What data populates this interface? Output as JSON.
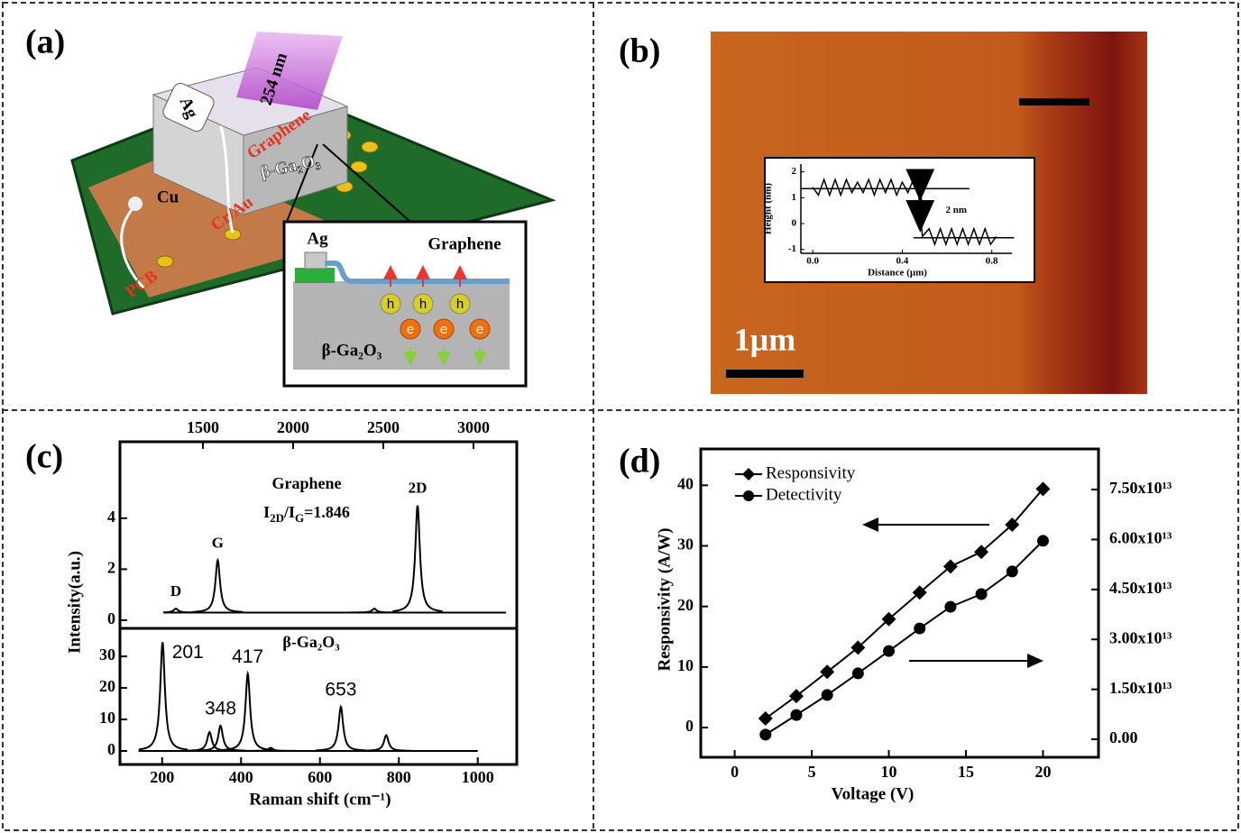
{
  "panels": {
    "a": {
      "label": "(a)",
      "wavelength": "254 nm",
      "electrode": "Ag",
      "graphene": "Graphene",
      "substrate": "β-Ga₂O₃",
      "copper": "Cu",
      "contact": "Cr/Au",
      "board": "PCB",
      "inset": {
        "electrode": "Ag",
        "layer": "Graphene",
        "holes": [
          "h",
          "h",
          "h"
        ],
        "electrons": [
          "e",
          "e",
          "e"
        ],
        "substrate": "β-Ga₂O₃"
      }
    },
    "b": {
      "label": "(b)",
      "scale_bar": "1μm"
    },
    "c": {
      "label": "(c)",
      "ylabel": "Intensity(a.u.)",
      "xlabel": "Raman shift (cm⁻¹)"
    },
    "d": {
      "label": "(d)"
    }
  },
  "chart_data": [
    {
      "type": "spectrum",
      "title": "Graphene",
      "ratio": [
        "I",
        "2D",
        "/I",
        "G",
        "=1.846"
      ],
      "xlim": [
        1040,
        3240
      ],
      "xticks": [
        1500,
        2000,
        2500,
        3000
      ],
      "xrange": [
        1280,
        3180
      ],
      "ylim": [
        -0.32,
        7.0
      ],
      "yticks": [
        0,
        2,
        4
      ],
      "baseline": 0.3,
      "color": "#000000",
      "peaks": [
        {
          "x": 1350,
          "height": 0.45,
          "label": "D"
        },
        {
          "x": 1582,
          "height": 2.35,
          "label": "G"
        },
        {
          "x": 2450,
          "height": 0.45
        },
        {
          "x": 2690,
          "height": 4.5,
          "label": "2D"
        }
      ]
    },
    {
      "type": "spectrum",
      "title": "β-Ga₂O₃",
      "xlim": [
        93,
        1099
      ],
      "xticks": [
        200,
        400,
        600,
        800,
        1000
      ],
      "xrange": [
        140,
        1000
      ],
      "ylim": [
        -4.3,
        38.9
      ],
      "yticks": [
        0,
        10,
        20,
        30
      ],
      "baseline": 0,
      "color": "#000000",
      "peaks": [
        {
          "x": 201,
          "height": 34.5,
          "label": "201"
        },
        {
          "x": 320,
          "height": 6
        },
        {
          "x": 348,
          "height": 8,
          "label": "348"
        },
        {
          "x": 417,
          "height": 24.5,
          "label": "417"
        },
        {
          "x": 475,
          "height": 1
        },
        {
          "x": 653,
          "height": 14,
          "label": "653"
        },
        {
          "x": 768,
          "height": 5
        }
      ]
    },
    {
      "type": "line",
      "xlabel": "Distance (μm)",
      "ylabel": "Height (nm)",
      "annotation": "2 nm",
      "xlim": [
        -0.053,
        0.89
      ],
      "xticks": [
        {
          "value": 0,
          "label": "0.0"
        },
        0.4,
        0.8
      ],
      "ylim": [
        -1.15,
        2.3
      ],
      "yticks": [
        2,
        1,
        0,
        -1
      ],
      "levels": [
        {
          "y": 1.35,
          "x": [
            -0.05,
            0.7
          ]
        },
        {
          "y": -0.55,
          "x": [
            0.45,
            0.9
          ]
        }
      ],
      "x": [
        0.0,
        0.025,
        0.05,
        0.075,
        0.1,
        0.125,
        0.15,
        0.175,
        0.2,
        0.225,
        0.25,
        0.275,
        0.3,
        0.325,
        0.35,
        0.375,
        0.4,
        0.425,
        0.45,
        0.47,
        0.49,
        0.52,
        0.545,
        0.57,
        0.595,
        0.62,
        0.645,
        0.67,
        0.695,
        0.72,
        0.745,
        0.77,
        0.795,
        0.82
      ],
      "values": [
        1.4,
        1.1,
        1.7,
        1.1,
        1.7,
        1.1,
        1.7,
        1.2,
        1.6,
        1.2,
        1.7,
        1.1,
        1.7,
        1.2,
        1.7,
        1.1,
        1.6,
        1.2,
        1.7,
        1.6,
        -0.5,
        -0.2,
        -0.8,
        -0.2,
        -0.8,
        -0.2,
        -0.8,
        -0.2,
        -0.8,
        -0.2,
        -0.8,
        -0.2,
        -0.8,
        -0.5
      ],
      "color": "#000000"
    },
    {
      "type": "line",
      "xlabel": "Voltage (V)",
      "ylabel": "Responsivity (A/W)",
      "xlim": [
        -2.2,
        23.6
      ],
      "xticks": [
        0,
        5,
        10,
        15,
        20
      ],
      "ylim": [
        -4.9,
        46
      ],
      "yticks": [
        0,
        10,
        20,
        30,
        40
      ],
      "y2lim": [
        -5400000000000.0,
        87200000000000.0
      ],
      "y2ticks": [
        {
          "value": 0,
          "label": "0.00"
        },
        {
          "value": 15000000000000.0,
          "label": "1.50x10¹³"
        },
        {
          "value": 30000000000000.0,
          "label": "3.00x10¹³"
        },
        {
          "value": 45000000000000.0,
          "label": "4.50x10¹³"
        },
        {
          "value": 60000000000000.0,
          "label": "6.00x10¹³"
        },
        {
          "value": 75000000000000.0,
          "label": "7.50x10¹³"
        }
      ],
      "x": [
        2,
        4,
        6,
        8,
        10,
        12,
        14,
        16,
        18,
        20
      ],
      "legend": "top-left",
      "series": [
        {
          "name": "Responsivity",
          "color": "#000000",
          "marker": "diamond",
          "values": [
            1.5,
            5.2,
            9.2,
            13.2,
            17.9,
            22.3,
            26.6,
            29,
            33.5,
            39.4
          ]
        },
        {
          "name": "Detectivity",
          "color": "#000000",
          "marker": "circle",
          "axis": "y2",
          "values": [
            1400000000000.0,
            7300000000000.0,
            13300000000000.0,
            19800000000000.0,
            26500000000000.0,
            33300000000000.0,
            39800000000000.0,
            43600000000000.0,
            50400000000000.0,
            59600000000000.0
          ]
        }
      ]
    }
  ]
}
